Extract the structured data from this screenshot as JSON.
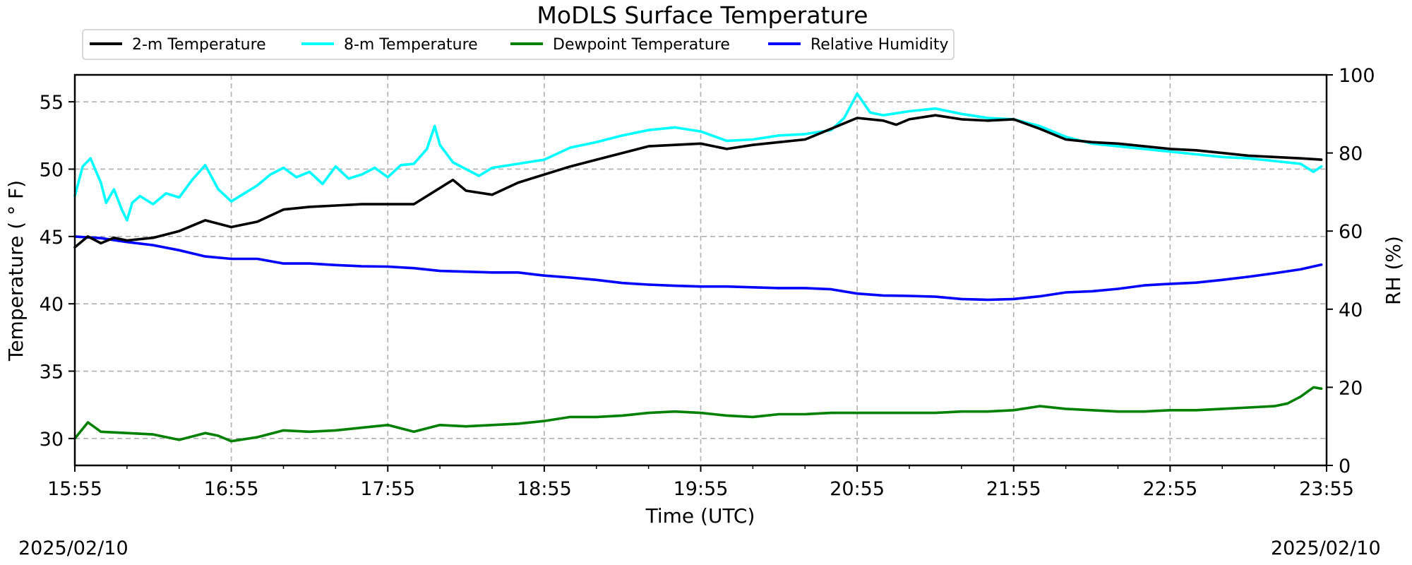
{
  "chart_data": {
    "type": "line",
    "title": "MoDLS Surface Temperature",
    "xlabel": "Time (UTC)",
    "ylabel_left": "Temperature ( ° F)",
    "ylabel_right": "RH (%)",
    "x_ticks": [
      "15:55",
      "16:55",
      "17:55",
      "18:55",
      "19:55",
      "20:55",
      "21:55",
      "22:55",
      "23:55"
    ],
    "x_range_minutes": [
      0,
      480
    ],
    "y_left_ticks": [
      "30",
      "35",
      "40",
      "45",
      "50",
      "55"
    ],
    "y_left_lim": [
      28,
      57
    ],
    "y_right_ticks": [
      "0",
      "20",
      "40",
      "60",
      "80",
      "100"
    ],
    "y_right_lim": [
      0,
      100
    ],
    "grid": true,
    "legend_position": "top-left, above plot",
    "date_left": "2025/02/10",
    "date_right": "2025/02/10",
    "series": [
      {
        "name": "2-m Temperature",
        "color": "#000000",
        "axis": "left",
        "x_minutes": [
          0,
          5,
          10,
          15,
          20,
          30,
          40,
          50,
          60,
          70,
          80,
          90,
          100,
          110,
          120,
          130,
          140,
          145,
          150,
          160,
          170,
          180,
          190,
          200,
          210,
          220,
          230,
          240,
          250,
          260,
          270,
          280,
          290,
          300,
          310,
          315,
          320,
          330,
          340,
          350,
          360,
          370,
          380,
          390,
          400,
          410,
          420,
          430,
          440,
          450,
          460,
          470,
          478
        ],
        "values": [
          44.2,
          45.0,
          44.5,
          44.9,
          44.7,
          44.9,
          45.4,
          46.2,
          45.7,
          46.1,
          47.0,
          47.2,
          47.3,
          47.4,
          47.4,
          47.4,
          48.6,
          49.2,
          48.4,
          48.1,
          49.0,
          49.6,
          50.2,
          50.7,
          51.2,
          51.7,
          51.8,
          51.9,
          51.5,
          51.8,
          52.0,
          52.2,
          53.0,
          53.8,
          53.6,
          53.3,
          53.7,
          54.0,
          53.7,
          53.6,
          53.7,
          53.0,
          52.2,
          52.0,
          51.9,
          51.7,
          51.5,
          51.4,
          51.2,
          51.0,
          50.9,
          50.8,
          50.7
        ]
      },
      {
        "name": "8-m Temperature",
        "color": "#00ffff",
        "axis": "left",
        "x_minutes": [
          0,
          3,
          6,
          10,
          12,
          15,
          18,
          20,
          22,
          25,
          30,
          35,
          40,
          45,
          50,
          55,
          60,
          65,
          70,
          75,
          80,
          85,
          90,
          95,
          100,
          105,
          110,
          115,
          120,
          125,
          130,
          135,
          138,
          140,
          145,
          150,
          155,
          160,
          170,
          180,
          190,
          200,
          210,
          220,
          230,
          240,
          250,
          260,
          270,
          280,
          290,
          295,
          300,
          305,
          310,
          320,
          330,
          340,
          350,
          360,
          370,
          380,
          390,
          400,
          410,
          420,
          430,
          440,
          450,
          460,
          470,
          475,
          478
        ],
        "values": [
          48.0,
          50.2,
          50.8,
          49.0,
          47.5,
          48.5,
          47.0,
          46.2,
          47.5,
          48.0,
          47.4,
          48.2,
          47.9,
          49.2,
          50.3,
          48.5,
          47.6,
          48.2,
          48.8,
          49.6,
          50.1,
          49.4,
          49.8,
          48.9,
          50.2,
          49.3,
          49.6,
          50.1,
          49.4,
          50.3,
          50.4,
          51.5,
          53.2,
          51.8,
          50.5,
          50.0,
          49.5,
          50.1,
          50.4,
          50.7,
          51.6,
          52.0,
          52.5,
          52.9,
          53.1,
          52.8,
          52.1,
          52.2,
          52.5,
          52.6,
          52.9,
          53.8,
          55.6,
          54.2,
          54.0,
          54.3,
          54.5,
          54.1,
          53.8,
          53.7,
          53.2,
          52.4,
          51.9,
          51.7,
          51.5,
          51.3,
          51.1,
          50.9,
          50.8,
          50.6,
          50.4,
          49.8,
          50.2
        ]
      },
      {
        "name": "Dewpoint Temperature",
        "color": "#008000",
        "axis": "left",
        "x_minutes": [
          0,
          5,
          10,
          20,
          30,
          40,
          50,
          55,
          60,
          70,
          80,
          90,
          100,
          110,
          120,
          130,
          140,
          150,
          160,
          170,
          180,
          190,
          200,
          210,
          220,
          230,
          240,
          250,
          260,
          270,
          280,
          290,
          300,
          310,
          320,
          330,
          340,
          350,
          360,
          370,
          380,
          390,
          400,
          410,
          420,
          430,
          440,
          450,
          460,
          465,
          470,
          475,
          478
        ],
        "values": [
          30.0,
          31.2,
          30.5,
          30.4,
          30.3,
          29.9,
          30.4,
          30.2,
          29.8,
          30.1,
          30.6,
          30.5,
          30.6,
          30.8,
          31.0,
          30.5,
          31.0,
          30.9,
          31.0,
          31.1,
          31.3,
          31.6,
          31.6,
          31.7,
          31.9,
          32.0,
          31.9,
          31.7,
          31.6,
          31.8,
          31.8,
          31.9,
          31.9,
          31.9,
          31.9,
          31.9,
          32.0,
          32.0,
          32.1,
          32.4,
          32.2,
          32.1,
          32.0,
          32.0,
          32.1,
          32.1,
          32.2,
          32.3,
          32.4,
          32.6,
          33.1,
          33.8,
          33.7
        ]
      },
      {
        "name": "Relative Humidity",
        "color": "#0000ff",
        "axis": "right",
        "x_minutes": [
          0,
          10,
          20,
          30,
          40,
          50,
          60,
          70,
          80,
          90,
          100,
          110,
          120,
          130,
          140,
          150,
          160,
          170,
          180,
          190,
          200,
          210,
          220,
          230,
          240,
          250,
          260,
          270,
          280,
          290,
          300,
          310,
          320,
          330,
          340,
          350,
          360,
          370,
          380,
          390,
          400,
          410,
          420,
          430,
          440,
          450,
          460,
          470,
          478
        ],
        "values": [
          58.6,
          58.2,
          57.2,
          56.4,
          55.1,
          53.5,
          52.9,
          52.9,
          51.7,
          51.7,
          51.3,
          51.0,
          50.9,
          50.5,
          49.8,
          49.6,
          49.4,
          49.4,
          48.6,
          48.1,
          47.5,
          46.7,
          46.3,
          46.0,
          45.8,
          45.8,
          45.6,
          45.4,
          45.4,
          45.1,
          44.0,
          43.5,
          43.4,
          43.2,
          42.6,
          42.4,
          42.6,
          43.3,
          44.3,
          44.6,
          45.2,
          46.1,
          46.5,
          46.8,
          47.5,
          48.3,
          49.2,
          50.2,
          51.4
        ]
      }
    ]
  }
}
